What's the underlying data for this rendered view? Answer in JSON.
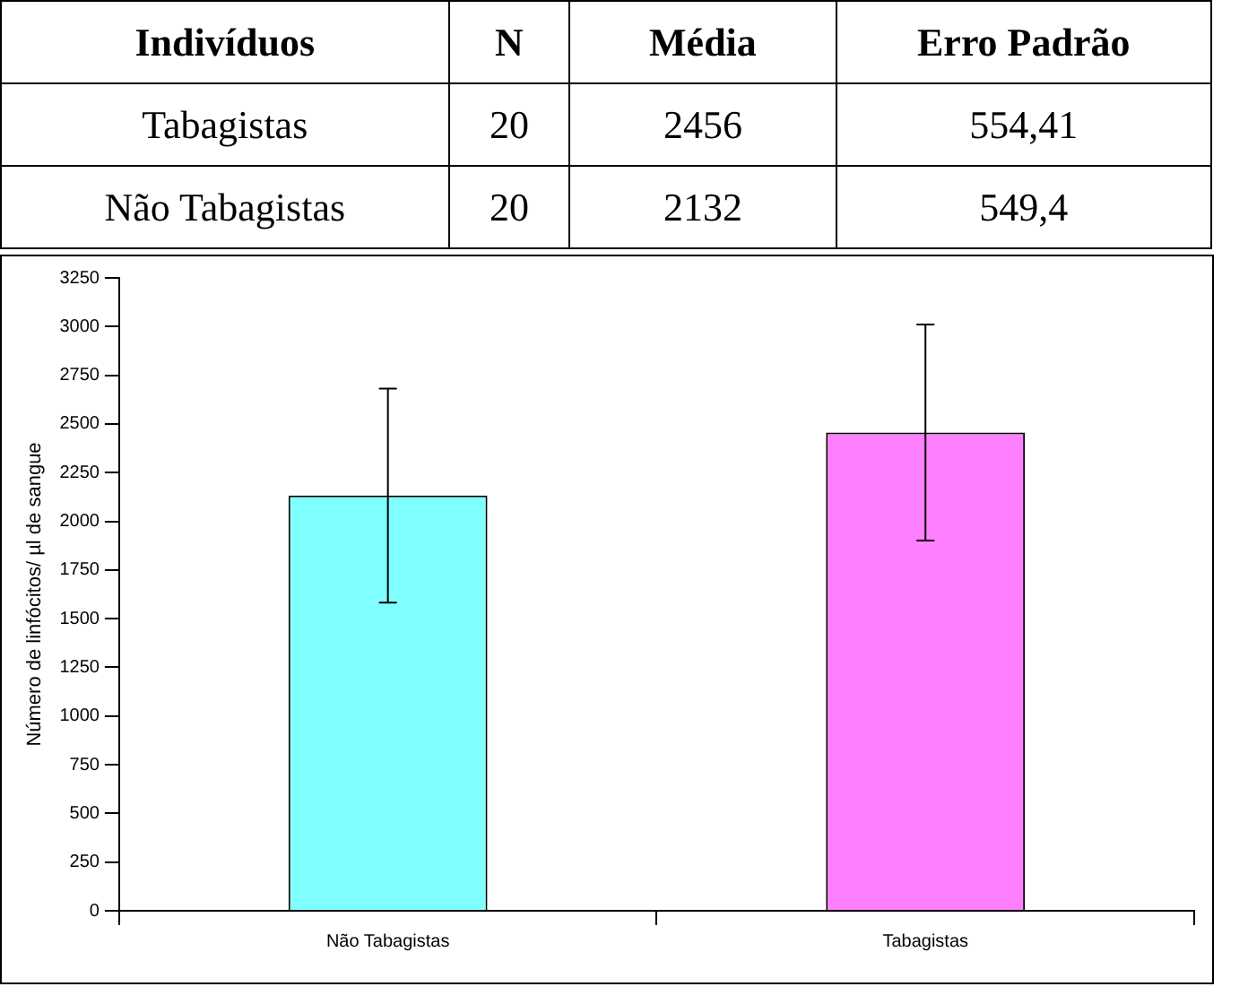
{
  "chart_data": {
    "type": "bar",
    "ylabel": "Número de linfócitos/ µl de sangue",
    "categories": [
      "Não Tabagistas",
      "Tabagistas"
    ],
    "values": [
      2132,
      2456
    ],
    "colors": [
      "#80ffff",
      "#ff80ff"
    ],
    "errors": [
      549.4,
      554.41
    ],
    "ylim": [
      0,
      3250
    ],
    "yticks": [
      0,
      250,
      500,
      750,
      1000,
      1250,
      1500,
      1750,
      2000,
      2250,
      2500,
      2750,
      3000,
      3250
    ],
    "grid": false,
    "legend": false,
    "annotations": [
      "Indivíduos",
      "N",
      "Média",
      "Erro Padrão",
      "Tabagistas",
      "20",
      "2456",
      "554,41",
      "Não Tabagistas",
      "20",
      "2132",
      "549,4"
    ]
  }
}
